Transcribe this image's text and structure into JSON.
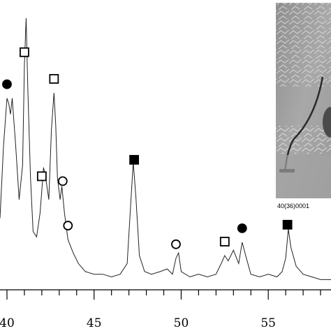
{
  "chart_data": {
    "type": "line",
    "title": "",
    "xlabel": "",
    "ylabel": "",
    "xlim": [
      39.6,
      58.6
    ],
    "ylim": [
      0,
      100
    ],
    "x_ticks": [
      40,
      45,
      50,
      55
    ],
    "x_tick_labels": [
      "40",
      "45",
      "50",
      "55"
    ],
    "grid": false,
    "series": [
      {
        "x": [
          39.6,
          39.8,
          40.0,
          40.1,
          40.2,
          40.3,
          40.5,
          40.7,
          40.9,
          41.0,
          41.1,
          41.2,
          41.35,
          41.5,
          41.7,
          41.9,
          42.1,
          42.25,
          42.4,
          42.55,
          42.7,
          42.8,
          42.9,
          43.05,
          43.15,
          43.3,
          43.5,
          43.8,
          44.1,
          44.5,
          45.0,
          45.5,
          46.0,
          46.5,
          46.9,
          47.1,
          47.25,
          47.4,
          47.6,
          47.9,
          48.3,
          48.8,
          49.2,
          49.5,
          49.7,
          49.85,
          50.0,
          50.5,
          51.0,
          51.5,
          52.0,
          52.3,
          52.5,
          52.7,
          53.0,
          53.3,
          53.5,
          53.7,
          54.0,
          54.5,
          55.0,
          55.5,
          55.8,
          56.0,
          56.15,
          56.3,
          56.6,
          57.0,
          57.5,
          58.0,
          58.6
        ],
        "y": [
          25,
          52,
          70,
          68,
          64,
          70,
          52,
          32,
          45,
          82,
          100,
          73,
          40,
          20,
          18,
          27,
          44,
          39,
          32,
          58,
          72,
          60,
          40,
          32,
          37,
          27,
          17,
          12,
          8,
          5,
          4,
          4,
          3,
          4,
          8,
          30,
          46,
          33,
          11,
          5,
          4,
          5,
          6,
          4,
          10,
          12,
          5,
          3,
          4,
          3,
          4,
          8,
          11,
          9,
          13,
          8,
          16,
          11,
          4,
          3,
          4,
          3,
          5,
          10,
          21,
          14,
          7,
          4,
          3,
          2,
          2
        ]
      }
    ],
    "annotations": [
      {
        "marker": "filled-circle",
        "x": 40.0
      },
      {
        "marker": "open-square",
        "x": 41.0
      },
      {
        "marker": "open-square",
        "x": 42.7
      },
      {
        "marker": "open-square",
        "x": 42.0
      },
      {
        "marker": "open-circle",
        "x": 43.2
      },
      {
        "marker": "open-circle",
        "x": 43.5
      },
      {
        "marker": "filled-square",
        "x": 47.3
      },
      {
        "marker": "open-circle",
        "x": 49.7
      },
      {
        "marker": "open-square",
        "x": 52.5
      },
      {
        "marker": "filled-circle",
        "x": 53.5
      },
      {
        "marker": "filled-square",
        "x": 56.1
      }
    ],
    "line_color": "#222222"
  },
  "inset": {
    "caption": "40(36)0001",
    "image_description_icon": "micrograph-image"
  }
}
